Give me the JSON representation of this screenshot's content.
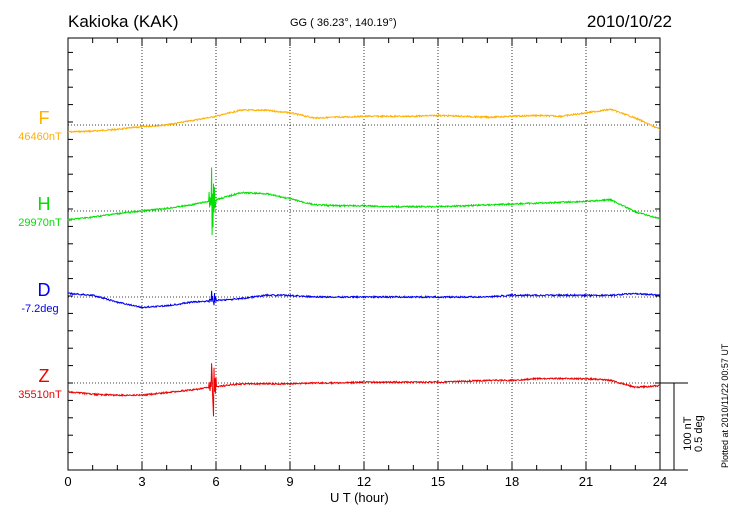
{
  "header": {
    "station": "Kakioka (KAK)",
    "coords": "GG ( 36.23°, 140.19°)",
    "date": "2010/10/22"
  },
  "footer": {
    "plotted": "Plotted at 2010/11/22 00:57 UT",
    "scale_nt": "100 nT",
    "scale_deg": "0.5 deg"
  },
  "chart_data": {
    "type": "line",
    "title": "Kakioka (KAK) 2010/10/22",
    "xlabel": "U T (hour)",
    "xlim": [
      0,
      24
    ],
    "xticks": [
      "0",
      "3",
      "6",
      "9",
      "12",
      "15",
      "18",
      "21",
      "24"
    ],
    "grid": true,
    "scale": {
      "nT_per_bar": 100,
      "deg_per_bar": 0.5
    },
    "hours": [
      0,
      1,
      2,
      3,
      4,
      5,
      6,
      7,
      8,
      9,
      10,
      11,
      12,
      13,
      14,
      15,
      16,
      17,
      18,
      19,
      20,
      21,
      22,
      23,
      24
    ],
    "series": [
      {
        "name": "F",
        "baseline_label": "46460nT",
        "unit": "nT",
        "color": "#ffb000",
        "values": [
          -8,
          -7,
          -5,
          -2,
          0,
          5,
          10,
          17,
          17,
          14,
          8,
          9,
          10,
          10,
          10,
          11,
          10,
          9,
          10,
          11,
          10,
          14,
          18,
          8,
          -5
        ],
        "storm_amplitude": 0
      },
      {
        "name": "H",
        "baseline_label": "29970nT",
        "unit": "nT",
        "color": "#00e000",
        "values": [
          -10,
          -7,
          -3,
          0,
          3,
          7,
          13,
          21,
          20,
          14,
          7,
          6,
          6,
          5,
          5,
          5,
          6,
          7,
          8,
          9,
          10,
          11,
          13,
          -1,
          -9
        ],
        "storm_amplitude": 40
      },
      {
        "name": "D",
        "baseline_label": "-7.2deg",
        "unit": "deg",
        "color": "#0000ee",
        "values": [
          0.02,
          0.01,
          -0.03,
          -0.06,
          -0.05,
          -0.03,
          -0.02,
          -0.01,
          0.01,
          0.01,
          0,
          0,
          0,
          0,
          0,
          0,
          0,
          0,
          0.01,
          0.01,
          0.01,
          0.01,
          0.01,
          0.02,
          0.01
        ],
        "storm_amplitude": 0.06
      },
      {
        "name": "Z",
        "baseline_label": "35510nT",
        "unit": "nT",
        "color": "#ee0000",
        "values": [
          -10,
          -13,
          -14,
          -14,
          -11,
          -8,
          -4,
          -1,
          -1,
          -1,
          0,
          0,
          1,
          1,
          1,
          1,
          2,
          3,
          3,
          5,
          5,
          5,
          3,
          -5,
          -3
        ],
        "storm_amplitude": 45
      }
    ]
  }
}
